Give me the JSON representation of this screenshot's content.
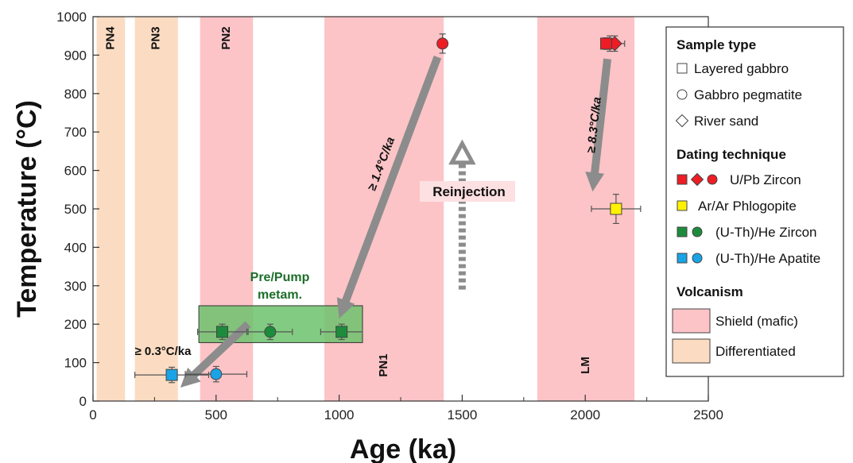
{
  "chart_data": {
    "type": "scatter",
    "xlabel": "Age (ka)",
    "ylabel": "Temperature (°C)",
    "xlim": [
      0,
      2500
    ],
    "ylim": [
      0,
      1000
    ],
    "xticks": [
      0,
      500,
      1000,
      1500,
      2000,
      2500
    ],
    "yticks": [
      0,
      100,
      200,
      300,
      400,
      500,
      600,
      700,
      800,
      900,
      1000
    ],
    "grid": false,
    "legend_position": "right",
    "colors": {
      "shield": "#fcc4c7",
      "differentiated": "#fbdcc2",
      "uPb": "#ee1c24",
      "arAr": "#fff200",
      "uThHeZircon": "#1c8c3c",
      "uThHeApatite": "#1aa3e6",
      "arrow": "#8c8c8c",
      "metam_fill": "#6cc26c",
      "metam_text": "#1c6e2a"
    },
    "bands": [
      {
        "label": "PN4",
        "type": "differentiated",
        "x0": 15,
        "x1": 130,
        "label_pos": "top"
      },
      {
        "label": "PN3",
        "type": "differentiated",
        "x0": 170,
        "x1": 345,
        "label_pos": "top"
      },
      {
        "label": "PN2",
        "type": "shield",
        "x0": 435,
        "x1": 650,
        "label_pos": "top"
      },
      {
        "label": "PN1",
        "type": "shield",
        "x0": 940,
        "x1": 1425,
        "label_pos": "bottom"
      },
      {
        "label": "LM",
        "type": "shield",
        "x0": 1805,
        "x1": 2200,
        "label_pos": "bottom"
      }
    ],
    "series": [
      {
        "name": "U/Pb Zircon",
        "marker": "circle",
        "color": "#ee1c24",
        "points": [
          {
            "x": 1420,
            "y": 930,
            "xerr": 0,
            "yerr": 25
          },
          {
            "x": 2100,
            "y": 930,
            "xerr": 30,
            "yerr": 20
          }
        ]
      },
      {
        "name": "U/Pb Zircon",
        "marker": "diamond",
        "color": "#ee1c24",
        "points": [
          {
            "x": 2120,
            "y": 930,
            "xerr": 40,
            "yerr": 20
          }
        ]
      },
      {
        "name": "U/Pb Zircon",
        "marker": "square",
        "color": "#ee1c24",
        "points": [
          {
            "x": 2085,
            "y": 930,
            "xerr": 15,
            "yerr": 15
          }
        ]
      },
      {
        "name": "Ar/Ar Phlogopite",
        "marker": "square",
        "color": "#fff200",
        "points": [
          {
            "x": 2125,
            "y": 500,
            "xerr": 100,
            "yerr": 38
          }
        ]
      },
      {
        "name": "(U-Th)/He Zircon",
        "marker": "square",
        "color": "#1c8c3c",
        "points": [
          {
            "x": 525,
            "y": 180,
            "xerr": 100,
            "yerr": 20
          },
          {
            "x": 1010,
            "y": 180,
            "xerr": 85,
            "yerr": 20
          }
        ]
      },
      {
        "name": "(U-Th)/He Zircon",
        "marker": "circle",
        "color": "#1c8c3c",
        "points": [
          {
            "x": 720,
            "y": 180,
            "xerr": 90,
            "yerr": 20
          }
        ]
      },
      {
        "name": "(U-Th)/He Apatite",
        "marker": "square",
        "color": "#1aa3e6",
        "points": [
          {
            "x": 320,
            "y": 68,
            "xerr": 150,
            "yerr": 20
          }
        ]
      },
      {
        "name": "(U-Th)/He Apatite",
        "marker": "circle",
        "color": "#1aa3e6",
        "points": [
          {
            "x": 500,
            "y": 70,
            "xerr": 125,
            "yerr": 20
          }
        ]
      }
    ],
    "metam_box": {
      "x0": 430,
      "x1": 1095,
      "y0": 152,
      "y1": 248,
      "label": "Pre/Pump\nmetam."
    },
    "arrows": [
      {
        "from": [
          1400,
          895
        ],
        "to": [
          1000,
          215
        ],
        "label": "≥ 1.4°C/ka"
      },
      {
        "from": [
          2090,
          890
        ],
        "to": [
          2030,
          545
        ],
        "label": "≥ 8.3°C/ka"
      },
      {
        "from": [
          630,
          200
        ],
        "to": [
          355,
          35
        ],
        "label": "≥ 0.3°C/ka"
      }
    ],
    "reinjection": {
      "x": 1500,
      "y_from": 290,
      "y_to": 670,
      "label": "Reinjection"
    }
  },
  "legend": {
    "sample_type_title": "Sample type",
    "sample_types": [
      "Layered gabbro",
      "Gabbro pegmatite",
      "River sand"
    ],
    "dating_title": "Dating technique",
    "dating": [
      {
        "label": "U/Pb Zircon",
        "color": "#ee1c24",
        "markers": [
          "square",
          "diamond",
          "circle"
        ]
      },
      {
        "label": "Ar/Ar Phlogopite",
        "color": "#fff200",
        "markers": [
          "square"
        ]
      },
      {
        "label": "(U-Th)/He Zircon",
        "color": "#1c8c3c",
        "markers": [
          "square",
          "circle"
        ]
      },
      {
        "label": "(U-Th)/He Apatite",
        "color": "#1aa3e6",
        "markers": [
          "square",
          "circle"
        ]
      }
    ],
    "volcanism_title": "Volcanism",
    "volcanism": [
      {
        "label": "Shield (mafic)",
        "color": "#fcc4c7"
      },
      {
        "label": "Differentiated",
        "color": "#fbdcc2"
      }
    ]
  }
}
